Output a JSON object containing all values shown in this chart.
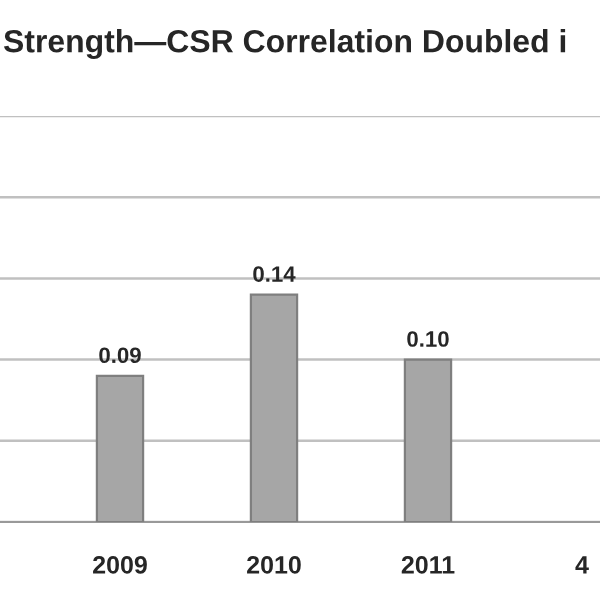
{
  "chart_data": {
    "type": "bar",
    "title": "Strength—CSR Correlation Doubled i",
    "categories": [
      null,
      "2009",
      "2010",
      "2011",
      "4"
    ],
    "values": [
      null,
      0.09,
      0.14,
      0.1,
      null
    ],
    "value_labels": [
      null,
      "0.09",
      "0.14",
      "0.10",
      null
    ],
    "color": "#a6a6a6",
    "ylim": [
      0,
      0.25
    ],
    "yticks": [
      {
        "value": 0,
        "label": null
      },
      {
        "value": 0.05,
        "label": null
      },
      {
        "value": 0.1,
        "label": null
      },
      {
        "value": 0.15,
        "label": null
      },
      {
        "value": 0.2,
        "label": null
      },
      {
        "value": 0.25,
        "label": null
      }
    ],
    "tick_labels": "x",
    "grid": "y",
    "data_labels": true
  }
}
